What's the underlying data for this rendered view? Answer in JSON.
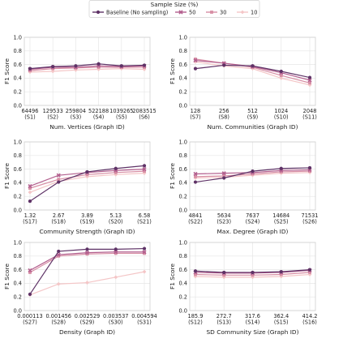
{
  "legend": {
    "title": "Sample Size (%)",
    "items": [
      {
        "name": "Baseline (No sampling)",
        "color": "#5e3266",
        "marker": "circle"
      },
      {
        "name": "50",
        "color": "#b35f8e",
        "marker": "x"
      },
      {
        "name": "30",
        "color": "#d78ea4",
        "marker": "square"
      },
      {
        "name": "10",
        "color": "#f4c6c7",
        "marker": "diamond"
      }
    ]
  },
  "chart_data": [
    {
      "type": "line",
      "xlabel": "Num. Vertices (Graph ID)",
      "ylabel": "F1 Score",
      "ylim": [
        0,
        1
      ],
      "yticks": [
        "0.0",
        "0.2",
        "0.4",
        "0.6",
        "0.8",
        "1.0"
      ],
      "categories": [
        "64496\n(S1)",
        "129533\n(S2)",
        "259804\n(S3)",
        "522188\n(S4)",
        "1039265\n(S5)",
        "2083515\n(S6)"
      ],
      "series": [
        {
          "name": "Baseline (No sampling)",
          "values": [
            0.54,
            0.57,
            0.58,
            0.61,
            0.58,
            0.59
          ]
        },
        {
          "name": "50",
          "values": [
            0.53,
            0.56,
            0.56,
            0.58,
            0.57,
            0.58
          ]
        },
        {
          "name": "30",
          "values": [
            0.51,
            0.54,
            0.55,
            0.56,
            0.56,
            0.56
          ]
        },
        {
          "name": "10",
          "values": [
            0.49,
            0.5,
            0.52,
            0.53,
            0.54,
            0.53
          ]
        }
      ]
    },
    {
      "type": "line",
      "xlabel": "Num. Communities (Graph ID)",
      "ylabel": "F1 Score",
      "ylim": [
        0,
        1
      ],
      "yticks": [
        "0.0",
        "0.2",
        "0.4",
        "0.6",
        "0.8",
        "1.0"
      ],
      "categories": [
        "128\n(S7)",
        "256\n(S8)",
        "512\n(S9)",
        "1024\n(S10)",
        "2048\n(S11)"
      ],
      "series": [
        {
          "name": "Baseline (No sampling)",
          "values": [
            0.54,
            0.59,
            0.58,
            0.5,
            0.41
          ]
        },
        {
          "name": "50",
          "values": [
            0.66,
            0.62,
            0.57,
            0.48,
            0.37
          ]
        },
        {
          "name": "30",
          "values": [
            0.68,
            0.62,
            0.56,
            0.44,
            0.33
          ]
        },
        {
          "name": "10",
          "values": [
            0.64,
            0.58,
            0.54,
            0.4,
            0.3
          ]
        }
      ]
    },
    {
      "type": "line",
      "xlabel": "Community Strength (Graph ID)",
      "ylabel": "F1 Score",
      "ylim": [
        0,
        1
      ],
      "yticks": [
        "0.0",
        "0.2",
        "0.4",
        "0.6",
        "0.8",
        "1.0"
      ],
      "categories": [
        "1.32\n(S17)",
        "2.67\n(S18)",
        "3.89\n(S19)",
        "5.13\n(S20)",
        "6.58\n(S21)"
      ],
      "series": [
        {
          "name": "Baseline (No sampling)",
          "values": [
            0.13,
            0.41,
            0.56,
            0.61,
            0.65
          ]
        },
        {
          "name": "50",
          "values": [
            0.35,
            0.51,
            0.55,
            0.58,
            0.6
          ]
        },
        {
          "name": "30",
          "values": [
            0.32,
            0.45,
            0.52,
            0.55,
            0.57
          ]
        },
        {
          "name": "10",
          "values": [
            0.26,
            0.42,
            0.49,
            0.52,
            0.54
          ]
        }
      ]
    },
    {
      "type": "line",
      "xlabel": "Max. Degree (Graph ID)",
      "ylabel": "F1 Score",
      "ylim": [
        0,
        1
      ],
      "yticks": [
        "0.0",
        "0.2",
        "0.4",
        "0.6",
        "0.8",
        "1.0"
      ],
      "categories": [
        "4841\n(S22)",
        "5634\n(S23)",
        "7637\n(S24)",
        "14684\n(S25)",
        "71531\n(S26)"
      ],
      "series": [
        {
          "name": "Baseline (No sampling)",
          "values": [
            0.41,
            0.47,
            0.57,
            0.61,
            0.62
          ]
        },
        {
          "name": "50",
          "values": [
            0.53,
            0.54,
            0.55,
            0.58,
            0.59
          ]
        },
        {
          "name": "30",
          "values": [
            0.49,
            0.5,
            0.53,
            0.56,
            0.57
          ]
        },
        {
          "name": "10",
          "values": [
            0.47,
            0.48,
            0.51,
            0.54,
            0.55
          ]
        }
      ]
    },
    {
      "type": "line",
      "xlabel": "Density (Graph ID)",
      "ylabel": "F1 Score",
      "ylim": [
        0,
        1
      ],
      "yticks": [
        "0.0",
        "0.2",
        "0.4",
        "0.6",
        "0.8",
        "1.0"
      ],
      "categories": [
        "0.000113\n(S27)",
        "0.001456\n(S28)",
        "0.002529\n(S29)",
        "0.003537\n(S30)",
        "0.004594\n(S31)"
      ],
      "series": [
        {
          "name": "Baseline (No sampling)",
          "values": [
            0.24,
            0.87,
            0.9,
            0.9,
            0.91
          ]
        },
        {
          "name": "50",
          "values": [
            0.59,
            0.82,
            0.85,
            0.86,
            0.86
          ]
        },
        {
          "name": "30",
          "values": [
            0.56,
            0.8,
            0.83,
            0.84,
            0.84
          ]
        },
        {
          "name": "10",
          "values": [
            0.23,
            0.39,
            0.41,
            0.49,
            0.57
          ]
        }
      ]
    },
    {
      "type": "line",
      "xlabel": "SD Community Size (Graph ID)",
      "ylabel": "F1 Score",
      "ylim": [
        0,
        1
      ],
      "yticks": [
        "0.0",
        "0.2",
        "0.4",
        "0.6",
        "0.8",
        "1.0"
      ],
      "categories": [
        "185.9\n(S12)",
        "272.7\n(S13)",
        "317.6\n(S14)",
        "362.4\n(S15)",
        "414.2\n(S16)"
      ],
      "series": [
        {
          "name": "Baseline (No sampling)",
          "values": [
            0.58,
            0.56,
            0.56,
            0.57,
            0.6
          ]
        },
        {
          "name": "50",
          "values": [
            0.56,
            0.55,
            0.55,
            0.56,
            0.59
          ]
        },
        {
          "name": "30",
          "values": [
            0.53,
            0.52,
            0.52,
            0.53,
            0.56
          ]
        },
        {
          "name": "10",
          "values": [
            0.5,
            0.49,
            0.49,
            0.5,
            0.53
          ]
        }
      ]
    }
  ]
}
